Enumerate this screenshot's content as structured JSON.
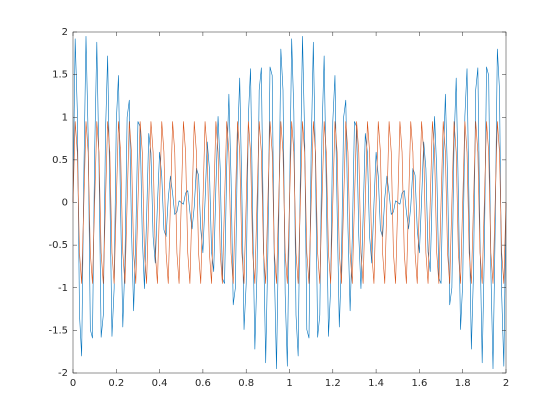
{
  "chart_data": {
    "type": "line",
    "x": [
      0,
      0.01,
      0.02,
      0.03,
      0.04,
      0.05,
      0.06,
      0.07,
      0.08,
      0.09,
      0.1,
      0.11,
      0.12,
      0.13,
      0.14,
      0.15,
      0.16,
      0.17,
      0.18,
      0.19,
      0.2,
      0.21,
      0.22,
      0.23,
      0.24,
      0.25,
      0.26,
      0.27,
      0.28,
      0.29,
      0.3,
      0.31,
      0.32,
      0.33,
      0.34,
      0.35,
      0.36,
      0.37,
      0.38,
      0.39,
      0.4,
      0.41,
      0.42,
      0.43,
      0.44,
      0.45,
      0.46,
      0.47,
      0.48,
      0.49,
      0.5,
      0.51,
      0.52,
      0.53,
      0.54,
      0.55,
      0.56,
      0.57,
      0.58,
      0.59,
      0.6,
      0.61,
      0.62,
      0.63,
      0.64,
      0.65,
      0.66,
      0.67,
      0.68,
      0.69,
      0.7,
      0.71,
      0.72,
      0.73,
      0.74,
      0.75,
      0.76,
      0.77,
      0.78,
      0.79,
      0.8,
      0.81,
      0.82,
      0.83,
      0.84,
      0.85,
      0.86,
      0.87,
      0.88,
      0.89,
      0.9,
      0.91,
      0.92,
      0.93,
      0.94,
      0.95,
      0.96,
      0.97,
      0.98,
      0.99,
      1,
      1.01,
      1.02,
      1.03,
      1.04,
      1.05,
      1.06,
      1.07,
      1.08,
      1.09,
      1.1,
      1.11,
      1.12,
      1.13,
      1.14,
      1.15,
      1.16,
      1.17,
      1.18,
      1.19,
      1.2,
      1.21,
      1.22,
      1.23,
      1.24,
      1.25,
      1.26,
      1.27,
      1.28,
      1.29,
      1.3,
      1.31,
      1.32,
      1.33,
      1.34,
      1.35,
      1.36,
      1.37,
      1.38,
      1.39,
      1.4,
      1.41,
      1.42,
      1.43,
      1.44,
      1.45,
      1.46,
      1.47,
      1.48,
      1.49,
      1.5,
      1.51,
      1.52,
      1.53,
      1.54,
      1.55,
      1.56,
      1.57,
      1.58,
      1.59,
      1.6,
      1.61,
      1.62,
      1.63,
      1.64,
      1.65,
      1.66,
      1.67,
      1.68,
      1.69,
      1.7,
      1.71,
      1.72,
      1.73,
      1.74,
      1.75,
      1.76,
      1.77,
      1.78,
      1.79,
      1.8,
      1.81,
      1.82,
      1.83,
      1.84,
      1.85,
      1.86,
      1.87,
      1.88,
      1.89,
      1.9,
      1.91,
      1.92,
      1.93,
      1.94,
      1.95,
      1.96,
      1.97,
      1.98,
      1.99,
      2
    ],
    "series": [
      {
        "color": "#0072bd",
        "values": [
          0,
          1.92,
          1.07,
          -1.32,
          -1.8,
          0.31,
          1.95,
          0.78,
          -1.49,
          -1.59,
          0.59,
          1.88,
          0.46,
          -1.58,
          -1.32,
          0.81,
          1.72,
          0.16,
          -1.57,
          -1.01,
          0.95,
          1.49,
          -0.1,
          -1.46,
          -0.7,
          1,
          1.2,
          -0.29,
          -1.27,
          -0.42,
          0.95,
          0.89,
          -0.39,
          -1.01,
          -0.18,
          0.81,
          0.58,
          -0.4,
          -0.71,
          -0.02,
          0.59,
          0.31,
          -0.32,
          -0.4,
          0.05,
          0.31,
          0.11,
          -0.14,
          -0.11,
          0.02,
          0,
          -0.02,
          0.11,
          0.14,
          -0.11,
          -0.31,
          -0.05,
          0.4,
          0.32,
          -0.31,
          -0.59,
          0.02,
          0.71,
          0.4,
          -0.58,
          -0.81,
          0.18,
          1.01,
          0.39,
          -0.89,
          -0.95,
          0.42,
          1.27,
          0.29,
          -1.2,
          -1,
          0.7,
          1.46,
          0.1,
          -1.49,
          -0.95,
          1.01,
          1.57,
          -0.16,
          -1.72,
          -0.81,
          1.32,
          1.58,
          -0.46,
          -1.88,
          -0.59,
          1.59,
          1.49,
          -0.78,
          -1.95,
          -0.31,
          1.8,
          1.32,
          -1.07,
          -1.92,
          0,
          1.92,
          1.07,
          -1.32,
          -1.8,
          0.31,
          1.95,
          0.78,
          -1.49,
          -1.59,
          0.59,
          1.88,
          0.46,
          -1.58,
          -1.32,
          0.81,
          1.72,
          0.16,
          -1.57,
          -1.01,
          0.95,
          1.49,
          -0.1,
          -1.46,
          -0.7,
          1,
          1.2,
          -0.29,
          -1.27,
          -0.42,
          0.95,
          0.89,
          -0.39,
          -1.01,
          -0.18,
          0.81,
          0.58,
          -0.4,
          -0.71,
          -0.02,
          0.59,
          0.31,
          -0.32,
          -0.4,
          0.05,
          0.31,
          0.11,
          -0.14,
          -0.11,
          0.02,
          0,
          -0.02,
          0.11,
          0.14,
          -0.11,
          -0.31,
          -0.05,
          0.4,
          0.32,
          -0.31,
          -0.59,
          0.02,
          0.71,
          0.4,
          -0.58,
          -0.81,
          0.18,
          1.01,
          0.39,
          -0.89,
          -0.95,
          0.42,
          1.27,
          0.29,
          -1.2,
          -1,
          0.7,
          1.46,
          0.1,
          -1.49,
          -0.95,
          1.01,
          1.57,
          -0.16,
          -1.72,
          -0.81,
          1.32,
          1.58,
          -0.46,
          -1.88,
          -0.59,
          1.59,
          1.49,
          -0.78,
          -1.95,
          -0.31,
          1.8,
          1.32,
          -1.07,
          -1.92,
          0
        ]
      },
      {
        "color": "#d95319",
        "values": [
          0,
          0.95,
          0.59,
          -0.59,
          -0.95,
          0,
          0.95,
          0.59,
          -0.59,
          -0.95,
          0,
          0.95,
          0.59,
          -0.59,
          -0.95,
          0,
          0.95,
          0.59,
          -0.59,
          -0.95,
          0,
          0.95,
          0.59,
          -0.59,
          -0.95,
          0,
          0.95,
          0.59,
          -0.59,
          -0.95,
          0,
          0.95,
          0.59,
          -0.59,
          -0.95,
          0,
          0.95,
          0.59,
          -0.59,
          -0.95,
          0,
          0.95,
          0.59,
          -0.59,
          -0.95,
          0,
          0.95,
          0.59,
          -0.59,
          -0.95,
          0,
          0.95,
          0.59,
          -0.59,
          -0.95,
          0,
          0.95,
          0.59,
          -0.59,
          -0.95,
          0,
          0.95,
          0.59,
          -0.59,
          -0.95,
          0,
          0.95,
          0.59,
          -0.59,
          -0.95,
          0,
          0.95,
          0.59,
          -0.59,
          -0.95,
          0,
          0.95,
          0.59,
          -0.59,
          -0.95,
          0,
          0.95,
          0.59,
          -0.59,
          -0.95,
          0,
          0.95,
          0.59,
          -0.59,
          -0.95,
          0,
          0.95,
          0.59,
          -0.59,
          -0.95,
          0,
          0.95,
          0.59,
          -0.59,
          -0.95,
          0,
          0.95,
          0.59,
          -0.59,
          -0.95,
          0,
          0.95,
          0.59,
          -0.59,
          -0.95,
          0,
          0.95,
          0.59,
          -0.59,
          -0.95,
          0,
          0.95,
          0.59,
          -0.59,
          -0.95,
          0,
          0.95,
          0.59,
          -0.59,
          -0.95,
          0,
          0.95,
          0.59,
          -0.59,
          -0.95,
          0,
          0.95,
          0.59,
          -0.59,
          -0.95,
          0,
          0.95,
          0.59,
          -0.59,
          -0.95,
          0,
          0.95,
          0.59,
          -0.59,
          -0.95,
          0,
          0.95,
          0.59,
          -0.59,
          -0.95,
          0,
          0.95,
          0.59,
          -0.59,
          -0.95,
          0,
          0.95,
          0.59,
          -0.59,
          -0.95,
          0,
          0.95,
          0.59,
          -0.59,
          -0.95,
          0,
          0.95,
          0.59,
          -0.59,
          -0.95,
          0,
          0.95,
          0.59,
          -0.59,
          -0.95,
          0,
          0.95,
          0.59,
          -0.59,
          -0.95,
          0,
          0.95,
          0.59,
          -0.59,
          -0.95,
          0,
          0.95,
          0.59,
          -0.59,
          -0.95,
          0,
          0.95,
          0.59,
          -0.59,
          -0.95,
          0,
          0.95,
          0.59,
          -0.59,
          -0.95,
          0
        ]
      }
    ],
    "xlim": [
      0,
      2
    ],
    "xticks": [
      0,
      0.2,
      0.4,
      0.6,
      0.8,
      1,
      1.2,
      1.4,
      1.6,
      1.8,
      2
    ],
    "ylim": [
      -2,
      2
    ],
    "yticks": [
      -2,
      -1.5,
      -1,
      -0.5,
      0,
      0.5,
      1,
      1.5,
      2
    ]
  }
}
